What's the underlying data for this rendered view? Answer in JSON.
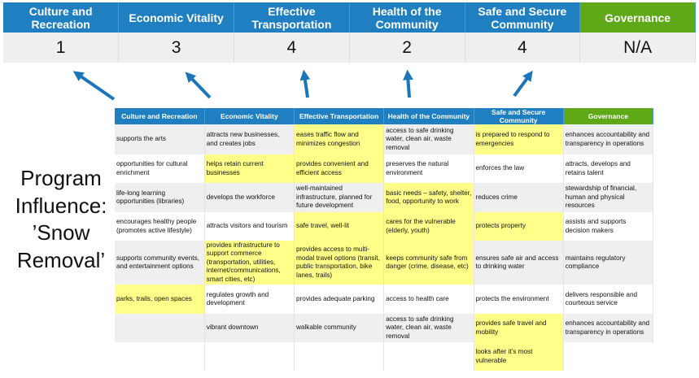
{
  "summary": {
    "headers": [
      "Culture and Recreation",
      "Economic Vitality",
      "Effective Transportation",
      "Health of the Community",
      "Safe and Secure Community",
      "Governance"
    ],
    "scores": [
      "1",
      "3",
      "4",
      "2",
      "4",
      "N/A"
    ]
  },
  "title_lines": [
    "Program",
    "Influence:",
    "’Snow",
    "Removal’"
  ],
  "colors": {
    "header_blue": "#1f7fc1",
    "governance_green": "#5fa818",
    "highlight_yellow": "#ffff8a",
    "arrow_blue": "#1a75bb"
  },
  "grid": {
    "headers": [
      "Culture and Recreation",
      "Economic Vitality",
      "Effective Transportation",
      "Health of the Community",
      "Safe and Secure Community",
      "Governance"
    ],
    "rows": [
      {
        "cells": [
          "supports the arts",
          "attracts new businesses, and creates jobs",
          "eases traffic flow and minimizes congestion",
          "access to safe drinking water, clean air, waste removal",
          "is prepared to respond to emergencies",
          "enhances accountability and transparency in operations"
        ],
        "highlighted": [
          false,
          false,
          true,
          false,
          true,
          false
        ]
      },
      {
        "cells": [
          "opportunities for cultural enrichment",
          "helps retain current businesses",
          "provides convenient and efficient access",
          "preserves the natural environment",
          "enforces the law",
          "attracts, develops and retains talent"
        ],
        "highlighted": [
          false,
          true,
          true,
          false,
          false,
          false
        ]
      },
      {
        "cells": [
          "life-long learning opportunities (libraries)",
          "develops the workforce",
          "well-maintained infrastructure, planned for future development",
          "basic needs – safety, shelter, food, opportunity to work",
          "reduces crime",
          "stewardship of financial, human and physical resources"
        ],
        "highlighted": [
          false,
          false,
          false,
          true,
          false,
          false
        ]
      },
      {
        "cells": [
          "encourages healthy people (promotes active lifestyle)",
          "attracts visitors and tourism",
          "safe travel, well-lit",
          "cares for the vulnerable (elderly, youth)",
          "protects property",
          "assists and supports decision makers"
        ],
        "highlighted": [
          false,
          false,
          true,
          true,
          true,
          false
        ]
      },
      {
        "cells": [
          "supports community events, and entertainment options",
          "provides infrastructure to support commerce (transportation, utilities, internet/communications, smart cities, etc)",
          "provides access to multi-modal travel options (transit, public transportation, bike lanes, trails)",
          "keeps community safe from danger (crime, disease, etc)",
          "ensures safe air and access to drinking water",
          "maintains regulatory compliance"
        ],
        "highlighted": [
          false,
          true,
          true,
          true,
          false,
          false
        ]
      },
      {
        "cells": [
          "parks, trails, open spaces",
          "regulates growth and development",
          "provides adequate parking",
          "access to health care",
          "protects the environment",
          "delivers responsible and courteous service"
        ],
        "highlighted": [
          true,
          false,
          false,
          false,
          false,
          false
        ]
      },
      {
        "cells": [
          "",
          "vibrant downtown",
          "walkable community",
          "access to safe drinking water, clean air, waste removal",
          "provides safe travel and mobility",
          "enhances accountability and transparency in operations"
        ],
        "highlighted": [
          false,
          false,
          false,
          false,
          true,
          false
        ]
      },
      {
        "cells": [
          "",
          "",
          "",
          "",
          "looks after it’s most vulnerable",
          ""
        ],
        "highlighted": [
          false,
          false,
          false,
          false,
          true,
          false
        ]
      }
    ]
  }
}
